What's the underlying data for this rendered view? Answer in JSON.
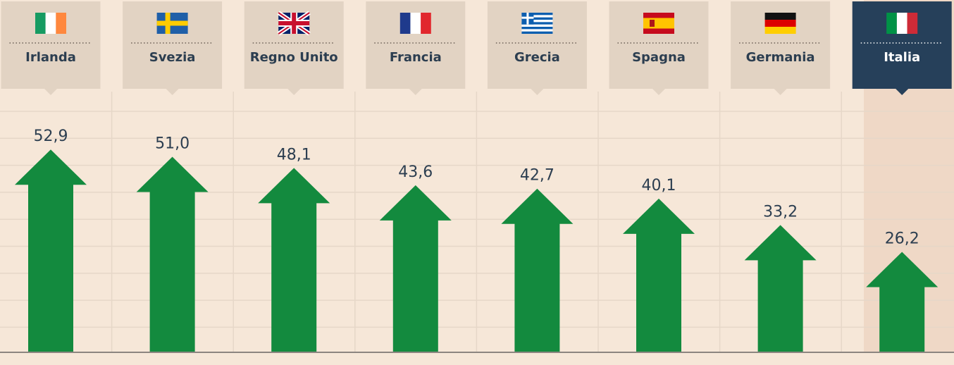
{
  "chart_data": {
    "type": "bar",
    "categories": [
      "Irlanda",
      "Svezia",
      "Regno Unito",
      "Francia",
      "Grecia",
      "Spagna",
      "Germania",
      "Italia"
    ],
    "values": [
      52.9,
      51.0,
      48.1,
      43.6,
      42.7,
      40.1,
      33.2,
      26.2
    ],
    "value_labels": [
      "52,9",
      "51,0",
      "48,1",
      "43,6",
      "42,7",
      "40,1",
      "33,2",
      "26,2"
    ],
    "flags": [
      "ireland-flag",
      "sweden-flag",
      "uk-flag",
      "france-flag",
      "greece-flag",
      "spain-flag",
      "germany-flag",
      "italy-flag"
    ],
    "highlight": "Italia",
    "title": "",
    "xlabel": "",
    "ylabel": "",
    "ylim": [
      0,
      60
    ],
    "grid": true,
    "legend": "none"
  },
  "colors": {
    "background": "#f6e7d8",
    "header_box": "#e2d3c3",
    "header_box_highlight": "#26405a",
    "highlight_column": "#efd8c6",
    "bar": "#138a3e",
    "text": "#2c3e50",
    "text_highlight": "#ffffff",
    "grid": "#e6d7c8",
    "axis": "#8c8580"
  }
}
